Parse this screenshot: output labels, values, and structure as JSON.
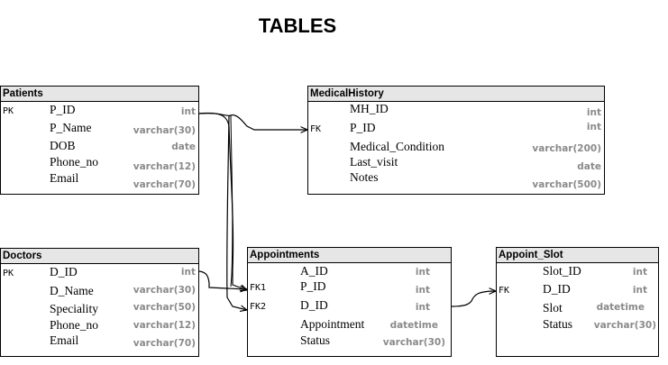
{
  "title": "TABLES",
  "tables": {
    "patients": {
      "name": "Patients",
      "fields": [
        {
          "key": "PK",
          "name": "P_ID",
          "type": "int"
        },
        {
          "key": "",
          "name": "P_Name",
          "type": "varchar(30)"
        },
        {
          "key": "",
          "name": "DOB",
          "type": "date"
        },
        {
          "key": "",
          "name": "Phone_no",
          "type": "varchar(12)"
        },
        {
          "key": "",
          "name": "Email",
          "type": "varchar(70)"
        }
      ]
    },
    "medical_history": {
      "name": "MedicalHistory",
      "fields": [
        {
          "key": "",
          "name": "MH_ID",
          "type": "int"
        },
        {
          "key": "FK",
          "name": "P_ID",
          "type": "int"
        },
        {
          "key": "",
          "name": "Medical_Condition",
          "type": "varchar(200)"
        },
        {
          "key": "",
          "name": "Last_visit",
          "type": "date"
        },
        {
          "key": "",
          "name": "Notes",
          "type": "varchar(500)"
        }
      ]
    },
    "doctors": {
      "name": "Doctors",
      "fields": [
        {
          "key": "PK",
          "name": "D_ID",
          "type": "int"
        },
        {
          "key": "",
          "name": "D_Name",
          "type": "varchar(30)"
        },
        {
          "key": "",
          "name": "Speciality",
          "type": "varchar(50)"
        },
        {
          "key": "",
          "name": "Phone_no",
          "type": "varchar(12)"
        },
        {
          "key": "",
          "name": "Email",
          "type": "varchar(70)"
        }
      ]
    },
    "appointments": {
      "name": "Appointments",
      "fields": [
        {
          "key": "",
          "name": "A_ID",
          "type": "int"
        },
        {
          "key": "FK1",
          "name": "P_ID",
          "type": "int"
        },
        {
          "key": "FK2",
          "name": "D_ID",
          "type": "int"
        },
        {
          "key": "",
          "name": "Appointment",
          "type": "datetime"
        },
        {
          "key": "",
          "name": "Status",
          "type": "varchar(30)"
        }
      ]
    },
    "appoint_slot": {
      "name": "Appoint_Slot",
      "fields": [
        {
          "key": "",
          "name": "Slot_ID",
          "type": "int"
        },
        {
          "key": "FK",
          "name": "D_ID",
          "type": "int"
        },
        {
          "key": "",
          "name": "Slot",
          "type": "datetime"
        },
        {
          "key": "",
          "name": "Status",
          "type": "varchar(30)"
        }
      ]
    }
  }
}
